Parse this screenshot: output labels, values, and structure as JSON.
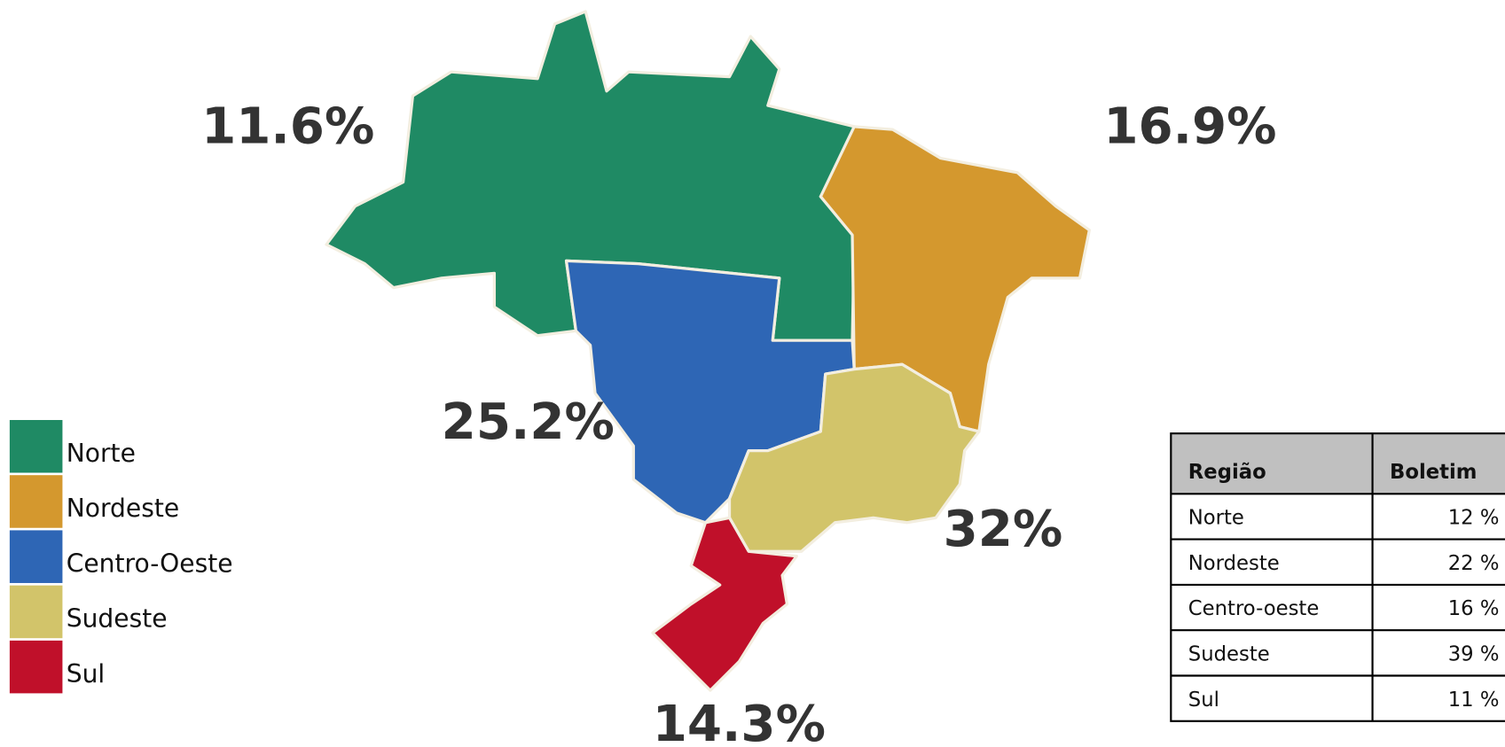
{
  "regions": [
    {
      "name": "Norte",
      "color": "#1f8a64",
      "share": "11.6%"
    },
    {
      "name": "Nordeste",
      "color": "#d4982e",
      "share": "16.9%"
    },
    {
      "name": "Centro-Oeste",
      "color": "#2e66b5",
      "share": "25.2%"
    },
    {
      "name": "Sudeste",
      "color": "#d2c46a",
      "share": "32%"
    },
    {
      "name": "Sul",
      "color": "#c0102a",
      "share": "14.3%"
    }
  ],
  "table": {
    "headers": [
      "Região",
      "Boletim"
    ],
    "rows": [
      [
        "Norte",
        "12 %"
      ],
      [
        "Nordeste",
        "22 %"
      ],
      [
        "Centro-oeste",
        "16 %"
      ],
      [
        "Sudeste",
        "39 %"
      ],
      [
        "Sul",
        "11 %"
      ]
    ]
  }
}
